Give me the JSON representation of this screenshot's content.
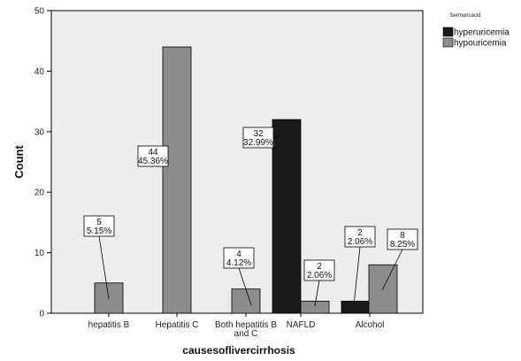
{
  "chart_data": {
    "type": "bar",
    "title": "",
    "xlabel": "causesoflivercirrhosis",
    "ylabel": "Count",
    "ylim": [
      0,
      50
    ],
    "yticks": [
      0,
      10,
      20,
      30,
      40,
      50
    ],
    "grid": false,
    "legend": {
      "title": "Sermuricacid",
      "position": "top-right outside"
    },
    "categories": [
      [
        "hepatitis B"
      ],
      [
        "Hepatitis C"
      ],
      [
        "Both hepatitis B",
        "and C"
      ],
      [
        "NAFLD"
      ],
      [
        "Alcohol"
      ]
    ],
    "series": [
      {
        "name": "hyperuricemia",
        "color": "#1a1a1a",
        "values": [
          0,
          0,
          0,
          32,
          2
        ],
        "labels": [
          null,
          null,
          null,
          [
            "32",
            "32.99%"
          ],
          [
            "2",
            "2.06%"
          ]
        ]
      },
      {
        "name": "hypouricemia",
        "color": "#8c8c8c",
        "values": [
          5,
          44,
          4,
          2,
          8
        ],
        "labels": [
          [
            "5",
            "5.15%"
          ],
          [
            "44",
            "45.36%"
          ],
          [
            "4",
            "4.12%"
          ],
          [
            "2",
            "2.06%"
          ],
          [
            "8",
            "8.25%"
          ]
        ]
      }
    ],
    "background_color": "#ededed",
    "frame_color": "#000000"
  }
}
